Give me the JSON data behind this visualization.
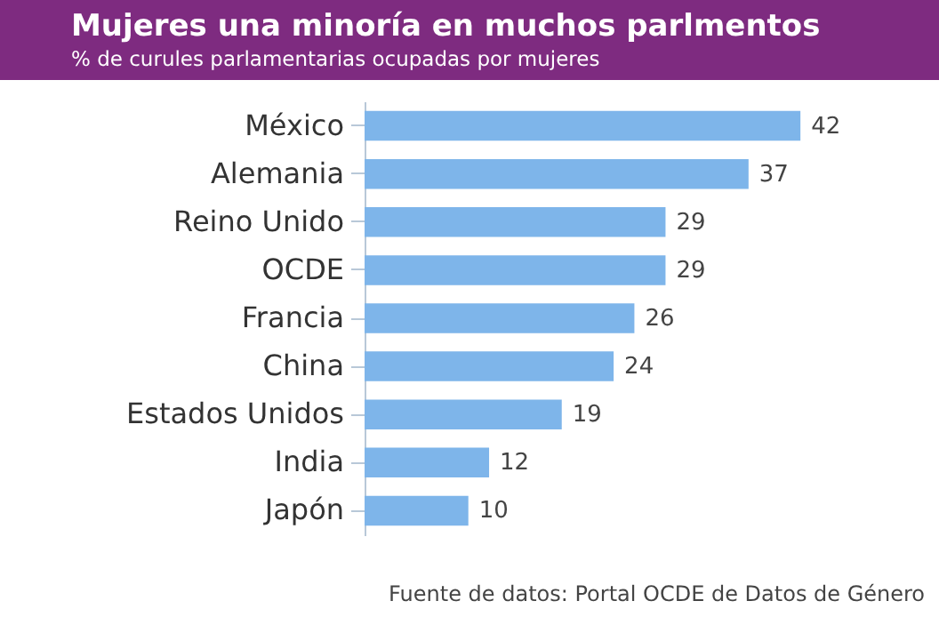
{
  "chart_data": {
    "type": "bar",
    "orientation": "horizontal",
    "title": "Mujeres una minoría en muchos parlmentos",
    "subtitle": "% de curules parlamentarias ocupadas por mujeres",
    "categories": [
      "México",
      "Alemania",
      "Reino Unido",
      "OCDE",
      "Francia",
      "China",
      "Estados Unidos",
      "India",
      "Japón"
    ],
    "values": [
      42,
      37,
      29,
      29,
      26,
      24,
      19,
      12,
      10
    ],
    "color": "#7eb5ea",
    "data_labels": true,
    "annotations": [
      "Fuente de datos: Portal OCDE de Datos de Género"
    ]
  }
}
